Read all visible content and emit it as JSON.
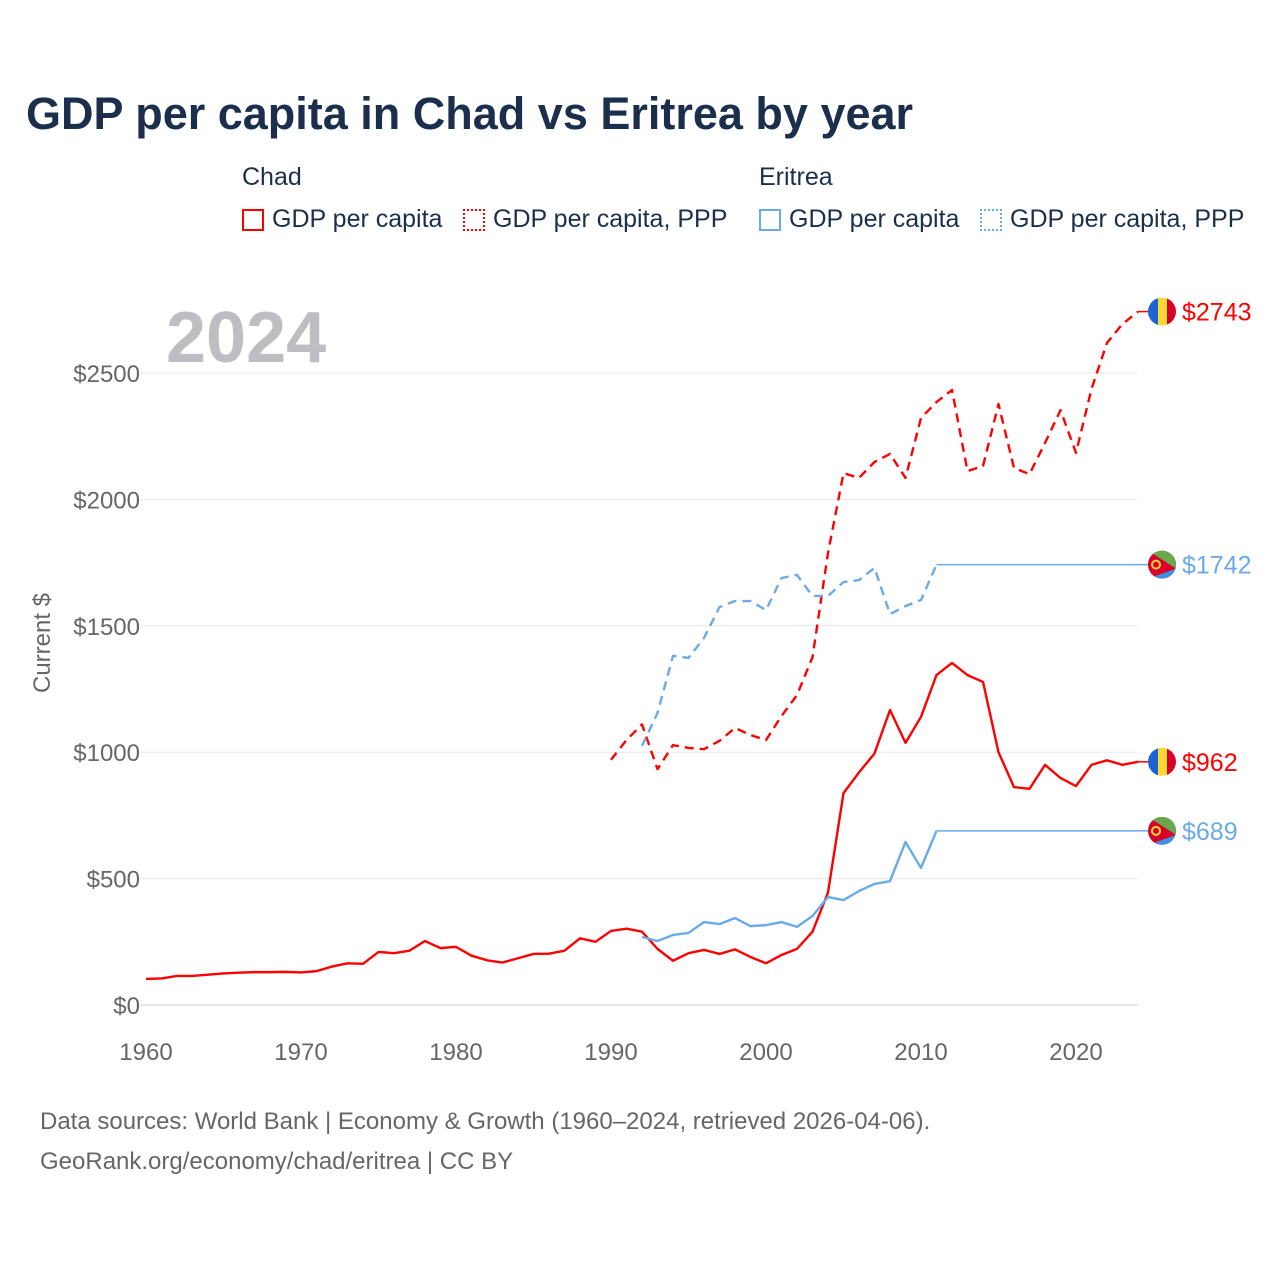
{
  "title": "GDP per capita in Chad vs Eritrea by year",
  "legend": {
    "groups": [
      {
        "name": "Chad",
        "color": "#ff0000",
        "items": [
          "GDP per capita",
          "GDP per capita, PPP"
        ]
      },
      {
        "name": "Eritrea",
        "color": "#6aaae8",
        "items": [
          "GDP per capita",
          "GDP per capita, PPP"
        ]
      }
    ]
  },
  "year_label": "2024",
  "footer": {
    "line1": "Data sources: World Bank | Economy & Growth (1960–2024, retrieved 2026-04-06).",
    "line2": "GeoRank.org/economy/chad/eritrea | CC BY"
  },
  "chart_data": {
    "type": "line",
    "title": "GDP per capita in Chad vs Eritrea by year",
    "xlabel": "",
    "ylabel": "Current $",
    "xlim": [
      1960,
      2024
    ],
    "ylim": [
      0,
      2750
    ],
    "x_ticks": [
      1960,
      1970,
      1980,
      1990,
      2000,
      2010,
      2020
    ],
    "y_ticks": [
      0,
      500,
      1000,
      1500,
      2000,
      2500
    ],
    "y_tick_labels": [
      "$0",
      "$500",
      "$1000",
      "$1500",
      "$2000",
      "$2500"
    ],
    "grid": true,
    "legend_position": "top",
    "series": [
      {
        "name": "Chad GDP per capita",
        "color": "#ff0000",
        "dash": false,
        "start": 1960,
        "end_label": "$962",
        "flag": "chad",
        "values": [
          103,
          105,
          115,
          115,
          120,
          125,
          128,
          130,
          130,
          131,
          129,
          134,
          152,
          165,
          163,
          210,
          205,
          215,
          253,
          225,
          230,
          195,
          177,
          168,
          185,
          202,
          203,
          215,
          264,
          250,
          293,
          302,
          290,
          222,
          175,
          205,
          218,
          202,
          220,
          190,
          165,
          198,
          222,
          290,
          445,
          838,
          920,
          995,
          1167,
          1037,
          1140,
          1305,
          1353,
          1305,
          1278,
          1000,
          862,
          855,
          950,
          898,
          866,
          950,
          968,
          950,
          962
        ]
      },
      {
        "name": "Chad GDP per capita, PPP",
        "color": "#ff0000",
        "dash": true,
        "start": 1990,
        "end_label": "$2743",
        "flag": "chad",
        "values": [
          970,
          1048,
          1110,
          933,
          1028,
          1017,
          1012,
          1045,
          1096,
          1068,
          1048,
          1143,
          1226,
          1376,
          1788,
          2104,
          2085,
          2148,
          2180,
          2085,
          2322,
          2385,
          2433,
          2112,
          2132,
          2377,
          2124,
          2100,
          2223,
          2353,
          2184,
          2437,
          2619,
          2694,
          2743
        ]
      },
      {
        "name": "Eritrea GDP per capita",
        "color": "#6aaae8",
        "dash": false,
        "start": 1992,
        "end_label": "$689",
        "flag": "eritrea",
        "flat_from": 2011,
        "values": [
          269,
          253,
          277,
          285,
          328,
          320,
          344,
          312,
          316,
          328,
          309,
          352,
          427,
          415,
          451,
          479,
          490,
          645,
          542,
          689,
          689,
          689,
          689,
          689,
          689,
          689,
          689,
          689,
          689,
          689,
          689,
          689,
          689
        ]
      },
      {
        "name": "Eritrea GDP per capita, PPP",
        "color": "#6aaae8",
        "dash": true,
        "start": 1992,
        "end_label": "$1742",
        "flag": "eritrea",
        "flat_from": 2011,
        "values": [
          1025,
          1155,
          1381,
          1373,
          1452,
          1574,
          1598,
          1598,
          1562,
          1689,
          1701,
          1618,
          1618,
          1673,
          1681,
          1729,
          1546,
          1578,
          1602,
          1742,
          1742,
          1742,
          1742,
          1742,
          1742,
          1742,
          1742,
          1742,
          1742,
          1742,
          1742,
          1742,
          1742
        ]
      }
    ]
  }
}
